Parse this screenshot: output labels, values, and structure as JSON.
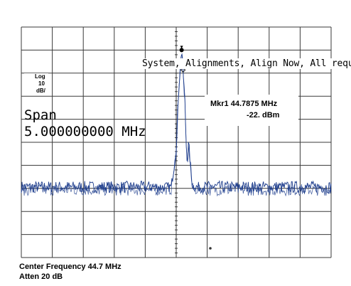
{
  "chart_data": {
    "type": "line",
    "title": "",
    "xlabel": "",
    "ylabel": "",
    "x_unit": "MHz",
    "x_range": [
      42.2,
      47.2
    ],
    "y_unit": "dBm",
    "reference_level": -12,
    "scale_db_per_div": 10,
    "ylim": [
      -112,
      -12
    ],
    "grid": true,
    "x_divisions": 10,
    "y_divisions": 10,
    "trace_color": "#1c3c8c",
    "series": [
      {
        "x": [
          42.2,
          43.0,
          43.8,
          44.4,
          44.58,
          44.62,
          44.66,
          44.7,
          44.73,
          44.76,
          44.7875,
          44.81,
          44.84,
          44.86,
          44.88,
          44.9,
          44.92,
          44.94,
          44.96,
          44.99,
          45.02,
          45.1,
          45.6,
          46.4,
          47.2
        ],
        "y": [
          -82,
          -82,
          -82,
          -82,
          -82,
          -82,
          -74,
          -66,
          -45,
          -31,
          -22,
          -31,
          -45,
          -63,
          -71,
          -63,
          -69,
          -76,
          -81,
          -82,
          -82,
          -82,
          -82,
          -82,
          -82
        ]
      }
    ],
    "marker": {
      "label": "Mkr1 44.7875 MHz",
      "amplitude": "-22. dBm",
      "frequency": 44.7875,
      "value": -22
    }
  },
  "screen": {
    "system_message": "System, Alignments, Align Now, All required",
    "span_title": "Span",
    "span_value": "5.000000000 MHz",
    "scale_log": "Log",
    "scale_value": "10",
    "scale_unit": "dB/",
    "center_frequency": "Center Frequency 44.7 MHz",
    "atten": "Atten 20 dB"
  }
}
